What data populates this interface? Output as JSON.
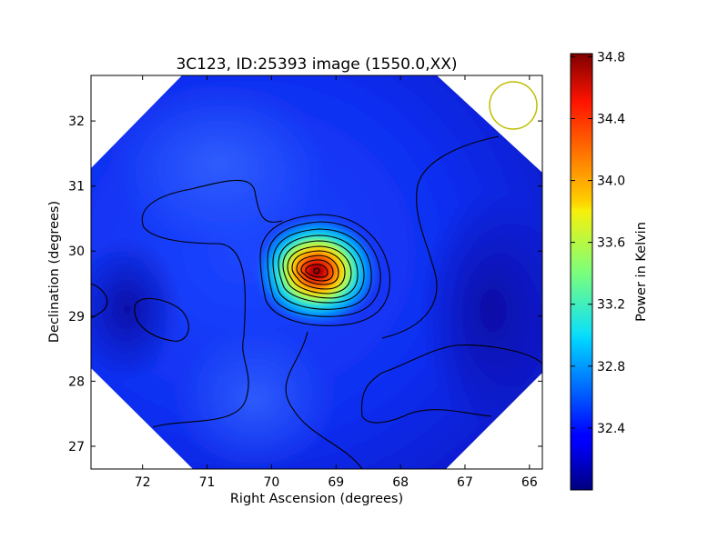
{
  "chart_data": {
    "type": "heatmap",
    "title": "3C123, ID:25393 image (1550.0,XX)",
    "xlabel": "Right Ascension (degrees)",
    "ylabel": "Declination (degrees)",
    "x_inverted": true,
    "xlim": [
      72.8,
      65.8
    ],
    "ylim": [
      26.65,
      32.7
    ],
    "x_ticks": [
      72,
      71,
      70,
      69,
      68,
      67,
      66
    ],
    "y_ticks": [
      27,
      28,
      29,
      30,
      31,
      32
    ],
    "grid": false,
    "colormap": "jet",
    "colorbar": {
      "label": "Power in Kelvin",
      "range": [
        32.0,
        34.82
      ],
      "ticks": [
        "32.4",
        "32.8",
        "33.2",
        "33.6",
        "34.0",
        "34.4",
        "34.8"
      ]
    },
    "background_level": 32.35,
    "peak": {
      "ra": 69.2,
      "dec": 29.68,
      "value": 34.8
    },
    "beam_circle": {
      "ra": 66.2,
      "dec": 32.28,
      "color": "#bfbf00"
    }
  }
}
